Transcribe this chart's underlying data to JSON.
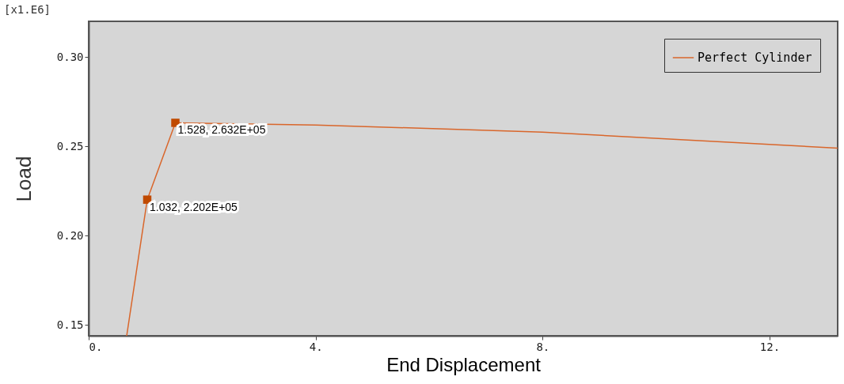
{
  "chart_data": {
    "type": "line",
    "xlabel": "End Displacement",
    "ylabel": "Load",
    "annotations": [
      "[x1.E6]"
    ],
    "xlim": [
      0,
      13.2
    ],
    "ylim": [
      0.144,
      0.32
    ],
    "xticks": [
      {
        "value": 0,
        "label": "0."
      },
      {
        "value": 4,
        "label": "4."
      },
      {
        "value": 8,
        "label": "8."
      },
      {
        "value": 12,
        "label": "12."
      }
    ],
    "yticks": [
      {
        "value": 0.15,
        "label": "0.15"
      },
      {
        "value": 0.2,
        "label": "0.20"
      },
      {
        "value": 0.25,
        "label": "0.25"
      },
      {
        "value": 0.3,
        "label": "0.30"
      }
    ],
    "series": [
      {
        "name": "Perfect Cylinder",
        "type": "line",
        "color": "#d9662b",
        "x": [
          0.67,
          1.032,
          1.528,
          4,
          8,
          13.2
        ],
        "values": [
          0.144,
          0.2202,
          0.2632,
          0.262,
          0.258,
          0.249
        ]
      },
      {
        "type": "scatter",
        "marker": "square",
        "color": "#c04a00",
        "x": [
          1.032,
          1.528
        ],
        "values": [
          0.2202,
          0.2632
        ],
        "value_labels": [
          "1.032, 2.202E+05",
          "1.528, 2.632E+05"
        ]
      }
    ],
    "grid": false,
    "legend": "top right"
  }
}
